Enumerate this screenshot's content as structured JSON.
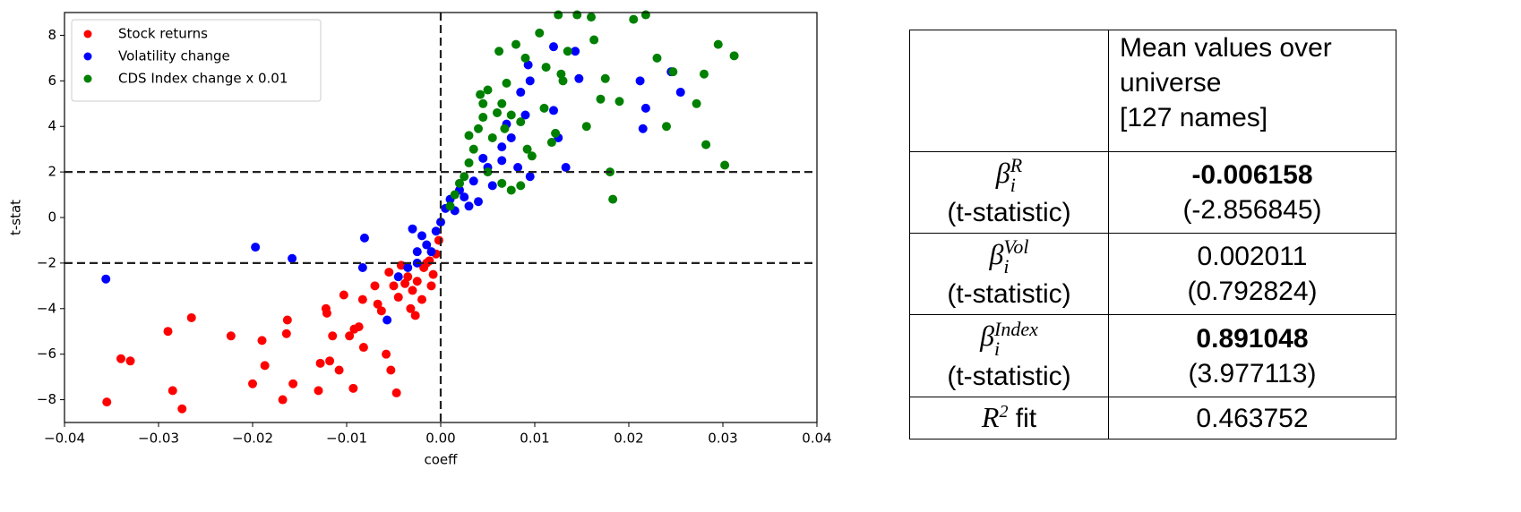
{
  "chart_data": {
    "type": "scatter",
    "x_label": "coeff",
    "y_label": "t-stat",
    "xlim": [
      -0.04,
      0.04
    ],
    "ylim": [
      -9,
      9
    ],
    "xticks": [
      {
        "value": -0.04,
        "label": "−0.04"
      },
      {
        "value": -0.03,
        "label": "−0.03"
      },
      {
        "value": -0.02,
        "label": "−0.02"
      },
      {
        "value": -0.01,
        "label": "−0.01"
      },
      {
        "value": 0,
        "label": "0.00"
      },
      0.01,
      0.02,
      0.03,
      0.04
    ],
    "yticks": [
      {
        "value": -8,
        "label": "−8"
      },
      {
        "value": -6,
        "label": "−6"
      },
      {
        "value": -4,
        "label": "−4"
      },
      {
        "value": -2,
        "label": "−2"
      },
      0,
      2,
      4,
      6,
      8
    ],
    "hlines": [
      2,
      -2
    ],
    "vlines": [
      0
    ],
    "grid": false,
    "legend": "upper left",
    "series": [
      {
        "name": "Stock returns",
        "color": "#ff0000",
        "x": [
          -0.0355,
          -0.034,
          -0.033,
          -0.029,
          -0.0285,
          -0.0275,
          -0.0265,
          -0.0223,
          -0.02,
          -0.019,
          -0.0187,
          -0.0168,
          -0.0164,
          -0.0163,
          -0.0157,
          -0.013,
          -0.0128,
          -0.0122,
          -0.0121,
          -0.0118,
          -0.0115,
          -0.0108,
          -0.0103,
          -0.0097,
          -0.0093,
          -0.0092,
          -0.0087,
          -0.0083,
          -0.0082,
          -0.007,
          -0.0067,
          -0.0063,
          -0.0058,
          -0.0053,
          -0.0047,
          -0.0055,
          -0.005,
          -0.0045,
          -0.0042,
          -0.0035,
          -0.0032,
          -0.003,
          -0.0027,
          -0.0025,
          -0.002,
          -0.0018,
          -0.0012,
          -0.001,
          -0.0008,
          -0.0005,
          -0.0002,
          -0.0038,
          -0.0015
        ],
        "values": [
          -8.1,
          -6.2,
          -6.3,
          -5.0,
          -7.6,
          -8.4,
          -4.4,
          -5.2,
          -7.3,
          -5.4,
          -6.5,
          -8.0,
          -5.1,
          -4.5,
          -7.3,
          -7.6,
          -6.4,
          -4.0,
          -4.2,
          -6.3,
          -5.2,
          -6.7,
          -3.4,
          -5.2,
          -7.5,
          -4.9,
          -4.8,
          -3.6,
          -5.7,
          -3.0,
          -3.8,
          -4.1,
          -6.0,
          -6.7,
          -7.7,
          -2.4,
          -3.0,
          -3.5,
          -2.1,
          -2.6,
          -4.0,
          -3.2,
          -4.3,
          -2.8,
          -3.6,
          -2.2,
          -1.9,
          -3.0,
          -2.5,
          -1.6,
          -1.0,
          -2.9,
          -2.0
        ]
      },
      {
        "name": "Volatility change",
        "color": "#0000ff",
        "x": [
          -0.0356,
          -0.0197,
          -0.0158,
          -0.0083,
          -0.0081,
          -0.0057,
          -0.0045,
          -0.0035,
          -0.003,
          -0.0025,
          -0.002,
          -0.0015,
          -0.001,
          -0.0005,
          0.0,
          0.0005,
          0.001,
          0.0015,
          0.002,
          0.0025,
          0.003,
          0.0035,
          0.004,
          0.005,
          0.0055,
          0.0065,
          0.0075,
          0.0085,
          0.009,
          0.0093,
          0.0095,
          0.0082,
          0.0095,
          0.012,
          0.012,
          0.0125,
          0.0133,
          0.0143,
          0.0147,
          0.0212,
          0.0215,
          0.0218,
          0.0245,
          0.0255,
          0.0065,
          0.007,
          0.0045,
          -0.0025
        ],
        "values": [
          -2.7,
          -1.3,
          -1.8,
          -2.2,
          -0.9,
          -4.5,
          -2.6,
          -2.2,
          -0.5,
          -1.5,
          -0.8,
          -1.2,
          -1.5,
          -0.6,
          -0.2,
          0.4,
          0.8,
          0.3,
          1.2,
          0.9,
          0.5,
          1.6,
          0.7,
          2.2,
          1.4,
          2.5,
          3.5,
          5.5,
          4.5,
          6.7,
          6.0,
          2.2,
          1.8,
          7.5,
          4.7,
          3.5,
          2.2,
          7.3,
          6.1,
          6.0,
          3.9,
          4.8,
          6.4,
          5.5,
          3.1,
          4.1,
          2.6,
          -2.0
        ]
      },
      {
        "name": "CDS Index change x 0.01",
        "color": "#008000",
        "x": [
          0.001,
          0.0015,
          0.002,
          0.0025,
          0.003,
          0.0035,
          0.003,
          0.004,
          0.0042,
          0.0045,
          0.005,
          0.0045,
          0.0055,
          0.006,
          0.0062,
          0.0065,
          0.0068,
          0.007,
          0.0075,
          0.008,
          0.0085,
          0.009,
          0.0092,
          0.0097,
          0.0105,
          0.011,
          0.0112,
          0.0118,
          0.0122,
          0.0125,
          0.0128,
          0.013,
          0.0135,
          0.0145,
          0.016,
          0.0163,
          0.017,
          0.0175,
          0.018,
          0.0183,
          0.019,
          0.0205,
          0.0218,
          0.023,
          0.024,
          0.0247,
          0.0272,
          0.028,
          0.0282,
          0.0295,
          0.0302,
          0.0312,
          0.0155,
          0.005,
          0.0065,
          0.0075,
          0.0085
        ],
        "values": [
          0.5,
          1.0,
          1.5,
          1.8,
          2.4,
          3.0,
          3.6,
          3.9,
          5.4,
          5.0,
          5.6,
          4.4,
          3.5,
          4.6,
          7.3,
          5.0,
          3.9,
          5.9,
          4.5,
          7.6,
          4.2,
          7.0,
          3.0,
          2.7,
          8.1,
          4.8,
          6.6,
          3.3,
          3.7,
          8.9,
          6.3,
          6.0,
          7.3,
          8.9,
          8.8,
          7.8,
          5.2,
          6.1,
          2.0,
          0.8,
          5.1,
          8.7,
          8.9,
          7.0,
          4.0,
          6.4,
          5.0,
          6.3,
          3.2,
          7.6,
          2.3,
          7.1,
          4.0,
          2.0,
          1.5,
          1.2,
          1.4
        ]
      }
    ]
  },
  "table": {
    "header": [
      "Mean values over",
      "universe",
      "[127 names]"
    ],
    "rows": [
      {
        "symbol": "β",
        "sup": "R",
        "sub": "i",
        "note": "(t-statistic)",
        "value": "-0.006158",
        "tstat": "(-2.856845)",
        "bold": true
      },
      {
        "symbol": "β",
        "sup": "Vol",
        "sub": "i",
        "note": "(t-statistic)",
        "value": "0.002011",
        "tstat": "(0.792824)",
        "bold": false
      },
      {
        "symbol": "β",
        "sup": "Index",
        "sub": "i",
        "note": "(t-statistic)",
        "value": "0.891048",
        "tstat": "(3.977113)",
        "bold": true
      },
      {
        "symbol": "R",
        "sup": "2",
        "suffix": " fit",
        "value": "0.463752",
        "bold": false
      }
    ]
  }
}
